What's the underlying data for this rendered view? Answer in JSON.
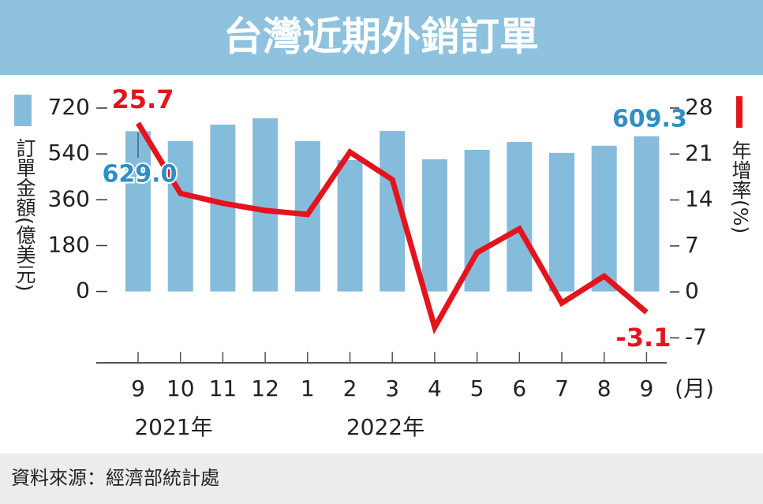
{
  "title": "台灣近期外銷訂單",
  "source": "資料來源：經濟部統計處",
  "chart_data": {
    "type": "bar-line",
    "categories": [
      "9",
      "10",
      "11",
      "12",
      "1",
      "2",
      "3",
      "4",
      "5",
      "6",
      "7",
      "8",
      "9"
    ],
    "group_labels": [
      "2021年",
      "2022年"
    ],
    "x_unit": "(月)",
    "ylabel": "訂單金額(億美元)",
    "y2label": "年增率(%)",
    "ylim": [
      -280,
      720
    ],
    "yticks": [
      0,
      180,
      360,
      540,
      720
    ],
    "y2lim": [
      -10.8,
      28
    ],
    "y2ticks": [
      -7,
      0,
      7,
      14,
      21,
      28
    ],
    "series": [
      {
        "type": "bar",
        "color": "#86bcdb",
        "label_color": "#2f8fc4",
        "values": [
          629.0,
          590,
          655,
          680,
          590,
          516,
          630,
          519,
          556,
          587,
          544,
          572,
          609.3
        ],
        "value_labels": [
          "629.0",
          null,
          null,
          null,
          null,
          null,
          null,
          null,
          null,
          null,
          null,
          null,
          "609.3"
        ]
      },
      {
        "type": "line",
        "axis": "y2",
        "color": "#e3141e",
        "values": [
          25.7,
          15.0,
          13.5,
          12.4,
          11.8,
          21.3,
          17.1,
          -5.4,
          6.0,
          9.6,
          -1.7,
          2.4,
          -3.1
        ]
      }
    ]
  }
}
